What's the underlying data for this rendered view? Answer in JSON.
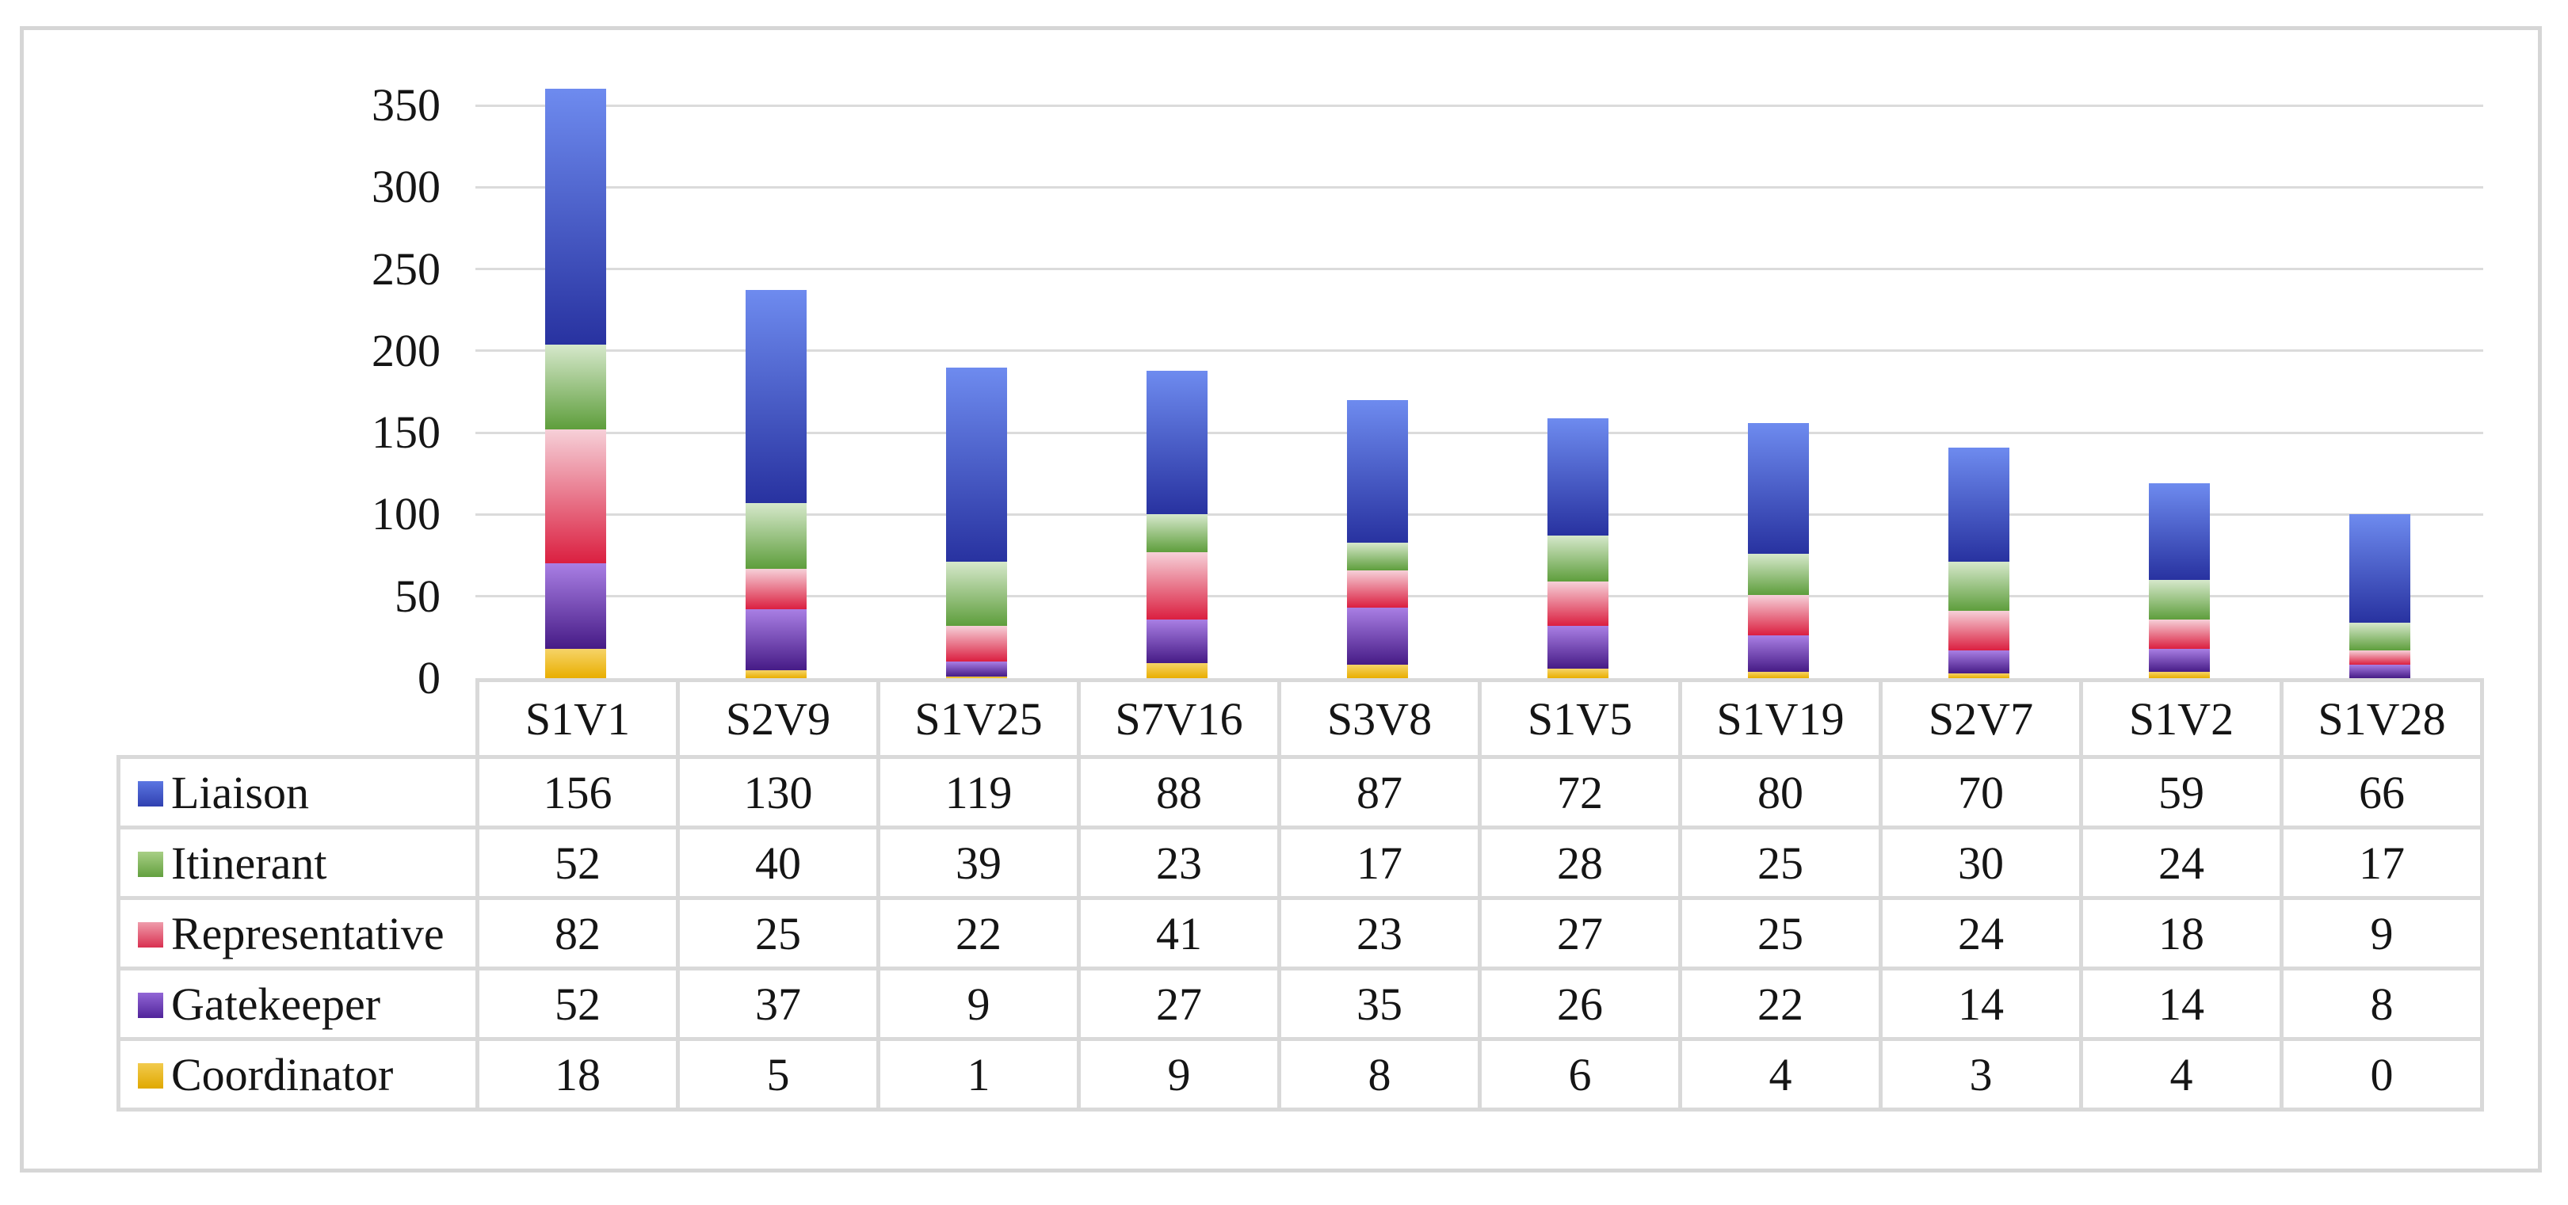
{
  "figure": {
    "background": "#ffffff",
    "border_color": "#d6d6d6",
    "gridline_color": "#dbdbdb",
    "table_border_color": "#d9d9d9"
  },
  "chart_data": {
    "type": "bar",
    "stacked": true,
    "title": "",
    "xlabel": "",
    "ylabel": "",
    "categories": [
      "S1V1",
      "S2V9",
      "S1V25",
      "S7V16",
      "S3V8",
      "S1V5",
      "S1V19",
      "S2V7",
      "S1V2",
      "S1V28"
    ],
    "series": [
      {
        "name": "Liaison",
        "values": [
          156,
          130,
          119,
          88,
          87,
          72,
          80,
          70,
          59,
          66
        ],
        "color": "#3e4fc0",
        "gradient_top": "#6e8bef",
        "gradient_bottom": "#2832a0",
        "swatch_top": "#5b76e2",
        "swatch_bottom": "#3040b0"
      },
      {
        "name": "Itinerant",
        "values": [
          52,
          40,
          39,
          23,
          17,
          28,
          25,
          30,
          24,
          17
        ],
        "color": "#6fae4a",
        "gradient_top": "#d6e8cb",
        "gradient_bottom": "#5e9e3c",
        "swatch_top": "#a8cf85",
        "swatch_bottom": "#63a03f"
      },
      {
        "name": "Representative",
        "values": [
          82,
          25,
          22,
          41,
          23,
          27,
          25,
          24,
          18,
          9
        ],
        "color": "#dc3a55",
        "gradient_top": "#f6d0d8",
        "gradient_bottom": "#db1f40",
        "swatch_top": "#ef9cab",
        "swatch_bottom": "#d93050"
      },
      {
        "name": "Gatekeeper",
        "values": [
          52,
          37,
          9,
          27,
          35,
          26,
          22,
          14,
          14,
          8
        ],
        "color": "#5f2daa",
        "gradient_top": "#a97fe4",
        "gradient_bottom": "#461b86",
        "swatch_top": "#9266d6",
        "swatch_bottom": "#50249a"
      },
      {
        "name": "Coordinator",
        "values": [
          18,
          5,
          1,
          9,
          8,
          6,
          4,
          3,
          4,
          0
        ],
        "color": "#edb302",
        "gradient_top": "#f6d468",
        "gradient_bottom": "#e9ae00",
        "swatch_top": "#f2cb4e",
        "swatch_bottom": "#e0a800"
      }
    ],
    "stack_order_bottom_to_top": [
      "Coordinator",
      "Gatekeeper",
      "Representative",
      "Itinerant",
      "Liaison"
    ],
    "ylim": [
      0,
      350
    ],
    "yticks": [
      0,
      50,
      100,
      150,
      200,
      250,
      300,
      350
    ],
    "grid": true,
    "legend_position": "table-rows-left"
  }
}
